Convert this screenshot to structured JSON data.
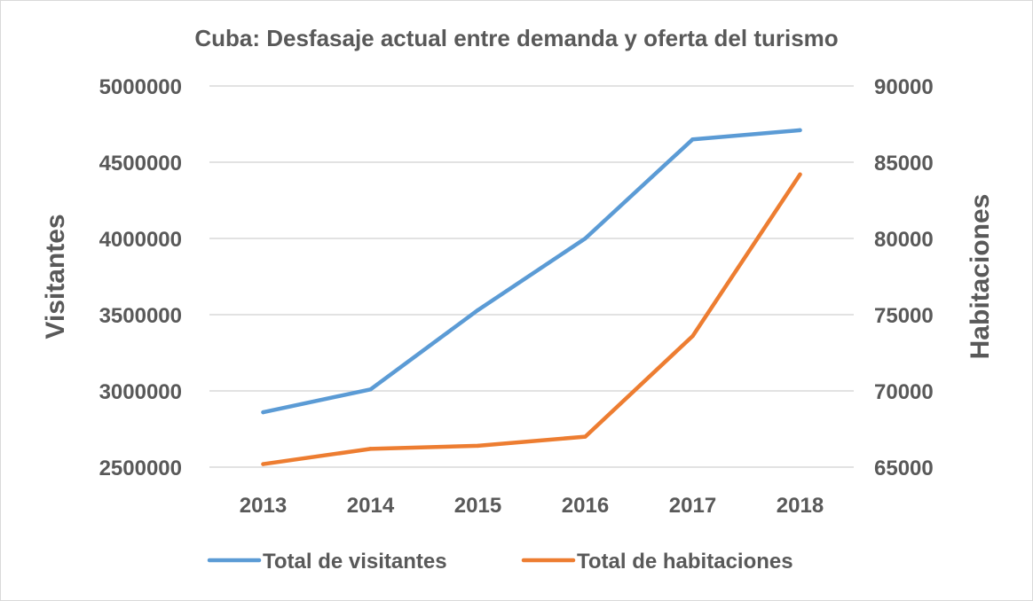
{
  "chart_data": {
    "type": "line",
    "title": "Cuba: Desfasaje actual entre demanda y oferta del turismo",
    "ylabel": "Visitantes",
    "y2label": "Habitaciones",
    "xlabel": "",
    "categories": [
      "2013",
      "2014",
      "2015",
      "2016",
      "2017",
      "2018"
    ],
    "ylim": [
      2500000,
      5000000
    ],
    "yticks": [
      2500000,
      3000000,
      3500000,
      4000000,
      4500000,
      5000000
    ],
    "y2lim": [
      65000,
      90000
    ],
    "y2ticks": [
      65000,
      70000,
      75000,
      80000,
      85000,
      90000
    ],
    "grid": true,
    "legend_position": "bottom",
    "series": [
      {
        "name": "Total de visitantes",
        "axis": "left",
        "color": "#5b9bd5",
        "values": [
          2860000,
          3010000,
          3530000,
          4000000,
          4650000,
          4710000
        ]
      },
      {
        "name": "Total de habitaciones",
        "axis": "right",
        "color": "#ed7d31",
        "values": [
          65200,
          66200,
          66400,
          67000,
          73600,
          84200
        ]
      }
    ]
  }
}
